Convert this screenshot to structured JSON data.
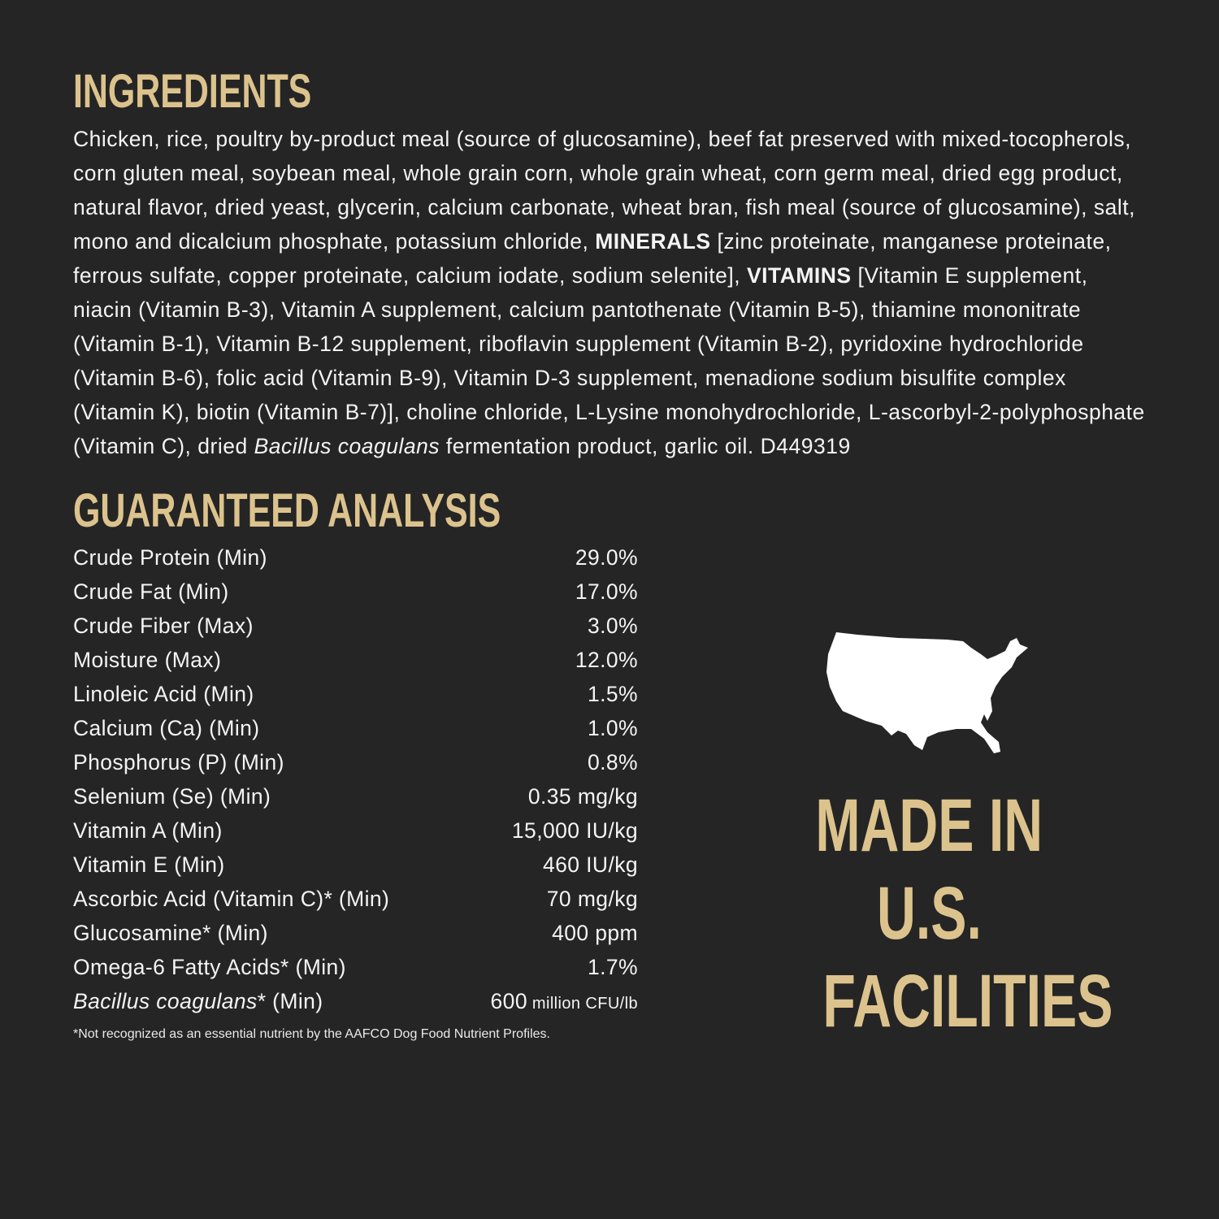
{
  "ingredients": {
    "heading": "INGREDIENTS",
    "segments": [
      {
        "style": "normal",
        "text": "Chicken, rice, poultry by-product meal (source of glucosamine), beef fat preserved with mixed-tocopherols, corn gluten meal, soybean meal, whole grain corn, whole grain wheat, corn germ meal, dried egg product, natural flavor, dried yeast, glycerin, calcium carbonate, wheat bran, fish meal (source of glucosamine), salt, mono and dicalcium phosphate, potassium chloride, "
      },
      {
        "style": "bold",
        "text": "MINERALS"
      },
      {
        "style": "normal",
        "text": " [zinc proteinate, manganese proteinate, ferrous sulfate, copper proteinate, calcium iodate, sodium selenite], "
      },
      {
        "style": "bold",
        "text": "VITAMINS"
      },
      {
        "style": "normal",
        "text": " [Vitamin E supplement, niacin (Vitamin B-3), Vitamin A supplement, calcium pantothenate (Vitamin B-5), thiamine mononitrate (Vitamin B-1), Vitamin B-12 supplement, riboflavin supplement (Vitamin B-2), pyridoxine hydrochloride (Vitamin B-6), folic acid (Vitamin B-9), Vitamin D-3 supplement, menadione sodium bisulfite complex (Vitamin K), biotin (Vitamin B-7)], choline chloride, L-Lysine monohydrochloride, L-ascorbyl-2-polyphosphate (Vitamin C), dried "
      },
      {
        "style": "italic",
        "text": "Bacillus coagulans"
      },
      {
        "style": "normal",
        "text": " fermentation product, garlic oil. D449319"
      }
    ]
  },
  "analysis": {
    "heading": "GUARANTEED ANALYSIS",
    "rows": [
      {
        "name": "Crude Protein (Min)",
        "value": "29.0%"
      },
      {
        "name": "Crude Fat (Min)",
        "value": "17.0%"
      },
      {
        "name": "Crude Fiber (Max)",
        "value": "3.0%"
      },
      {
        "name": "Moisture (Max)",
        "value": "12.0%"
      },
      {
        "name": "Linoleic Acid (Min)",
        "value": "1.5%"
      },
      {
        "name": "Calcium (Ca) (Min)",
        "value": "1.0%"
      },
      {
        "name": "Phosphorus (P) (Min)",
        "value": "0.8%"
      },
      {
        "name": "Selenium (Se) (Min)",
        "value": "0.35 mg/kg"
      },
      {
        "name": "Vitamin A (Min)",
        "value": "15,000 IU/kg"
      },
      {
        "name": "Vitamin E (Min)",
        "value": "460 IU/kg"
      },
      {
        "name": "Ascorbic Acid (Vitamin C)* (Min)",
        "value": "70 mg/kg"
      },
      {
        "name": "Glucosamine* (Min)",
        "value": "400 ppm"
      },
      {
        "name": "Omega-6 Fatty Acids* (Min)",
        "value": "1.7%"
      }
    ],
    "last_row": {
      "name_italic": "Bacillus coagulans",
      "name_rest": "* (Min)",
      "value": "600",
      "unit": " million CFU/lb"
    },
    "footnote": "*Not recognized as an essential nutrient by the AAFCO Dog Food Nutrient Profiles."
  },
  "badge": {
    "icon": "usa-map-icon",
    "lines": [
      "MADE IN",
      "U.S.",
      "FACILITIES"
    ]
  },
  "colors": {
    "background": "#252525",
    "accent": "#dcc38d",
    "text": "#f4f4f4"
  }
}
